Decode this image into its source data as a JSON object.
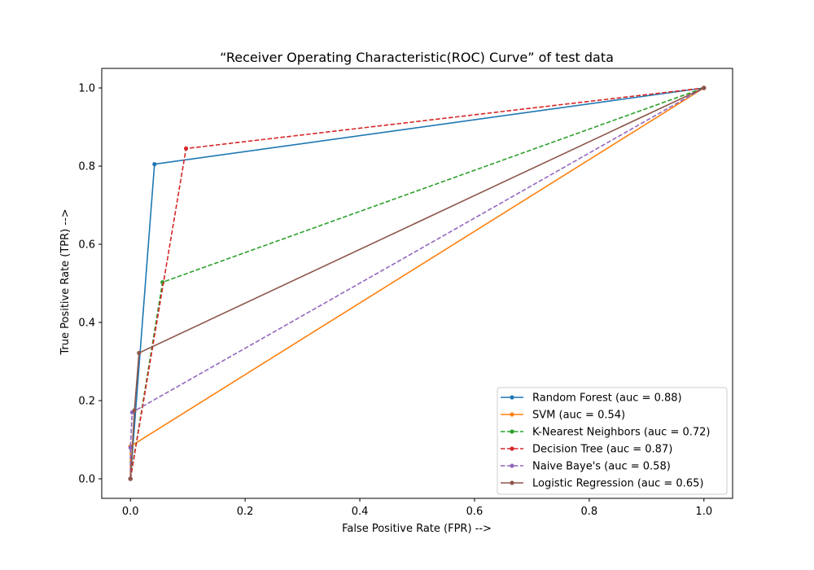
{
  "chart_data": {
    "type": "line",
    "title": "“Receiver Operating Characteristic(ROC) Curve” of test data",
    "xlabel": "False Positive Rate (FPR) -->",
    "ylabel": "True Positive Rate (TPR) -->",
    "xlim": [
      -0.05,
      1.05
    ],
    "ylim": [
      -0.05,
      1.05
    ],
    "xticks": [
      0.0,
      0.2,
      0.4,
      0.6,
      0.8,
      1.0
    ],
    "yticks": [
      0.0,
      0.2,
      0.4,
      0.6,
      0.8,
      1.0
    ],
    "xtick_labels": [
      "0.0",
      "0.2",
      "0.4",
      "0.6",
      "0.8",
      "1.0"
    ],
    "ytick_labels": [
      "0.0",
      "0.2",
      "0.4",
      "0.6",
      "0.8",
      "1.0"
    ],
    "grid": false,
    "legend_position": "lower right",
    "series": [
      {
        "name": "Random Forest (auc = 0.88)",
        "color": "#1f77b4",
        "style": "solid",
        "x": [
          0.0,
          0.042,
          1.0
        ],
        "y": [
          0.0,
          0.805,
          1.0
        ]
      },
      {
        "name": "SVM (auc = 0.54)",
        "color": "#ff7f0e",
        "style": "solid",
        "x": [
          0.0,
          0.0,
          1.0
        ],
        "y": [
          0.0,
          0.083,
          1.0
        ]
      },
      {
        "name": "K-Nearest Neighbors (auc = 0.72)",
        "color": "#2ca02c",
        "style": "dashed",
        "x": [
          0.0,
          0.056,
          1.0
        ],
        "y": [
          0.0,
          0.503,
          1.0
        ]
      },
      {
        "name": "Decision Tree (auc = 0.87)",
        "color": "#d62728",
        "style": "dashed",
        "x": [
          0.0,
          0.097,
          1.0
        ],
        "y": [
          0.0,
          0.845,
          1.0
        ]
      },
      {
        "name": "Naive Baye's (auc = 0.58)",
        "color": "#9467bd",
        "style": "dashed",
        "x": [
          0.0,
          0.0,
          0.003,
          1.0
        ],
        "y": [
          0.0,
          0.08,
          0.17,
          1.0
        ]
      },
      {
        "name": "Logistic Regression (auc = 0.65)",
        "color": "#8c564b",
        "style": "solid",
        "x": [
          0.0,
          0.007,
          0.015,
          1.0
        ],
        "y": [
          0.0,
          0.175,
          0.322,
          1.0
        ]
      }
    ]
  }
}
